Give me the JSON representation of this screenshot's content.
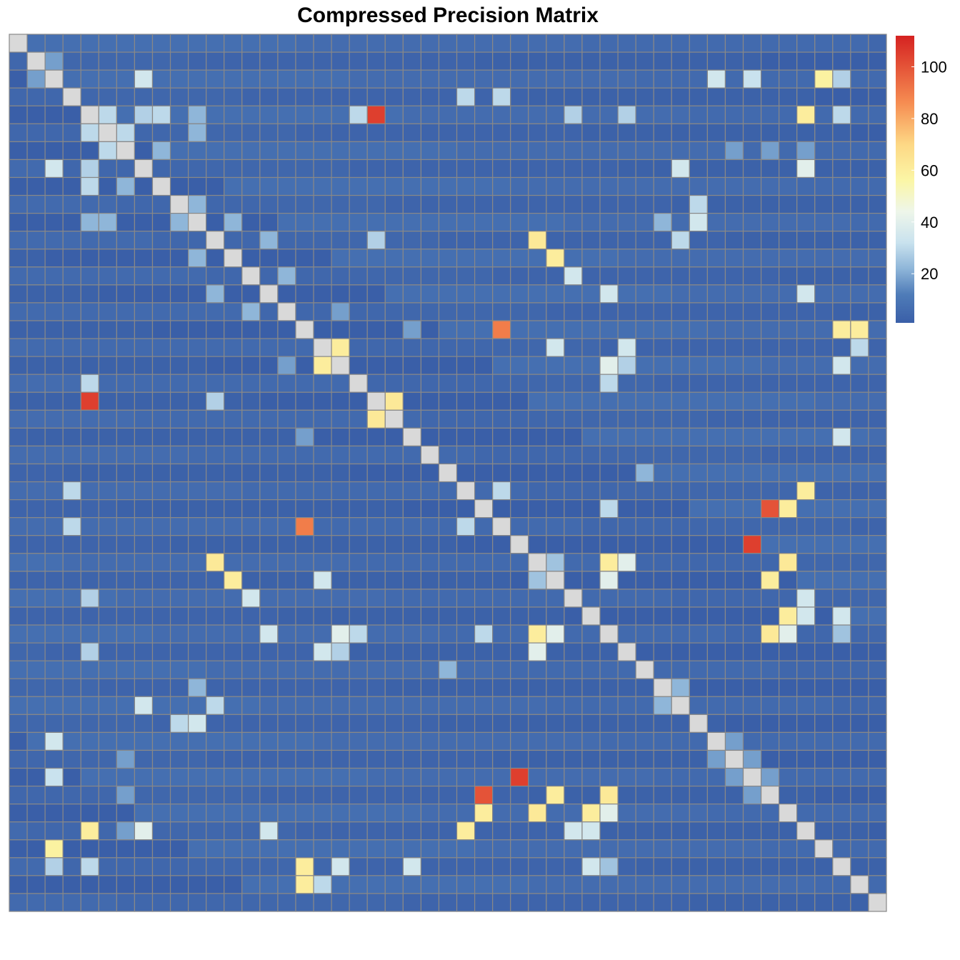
{
  "chart_data": {
    "type": "heatmap",
    "title": "Compressed Precision Matrix",
    "n": 49,
    "diagonal_color": "#d9d9d9",
    "grid_color": "#888888",
    "colorbar": {
      "min": 1,
      "max": 112,
      "ticks": [
        20,
        40,
        60,
        80,
        100
      ],
      "stops": [
        {
          "v": 1,
          "c": "#3a5fa8"
        },
        {
          "v": 12,
          "c": "#4f7cb8"
        },
        {
          "v": 22,
          "c": "#8fb6d9"
        },
        {
          "v": 32,
          "c": "#c9e2ee"
        },
        {
          "v": 44,
          "c": "#eef6ea"
        },
        {
          "v": 56,
          "c": "#fbf6a6"
        },
        {
          "v": 70,
          "c": "#fdd885"
        },
        {
          "v": 86,
          "c": "#f68d52"
        },
        {
          "v": 112,
          "c": "#d52221"
        }
      ]
    },
    "background_value": 3,
    "cells": [
      [
        1,
        2,
        18
      ],
      [
        2,
        7,
        35
      ],
      [
        2,
        45,
        58
      ],
      [
        2,
        46,
        28
      ],
      [
        2,
        41,
        32
      ],
      [
        3,
        25,
        30
      ],
      [
        3,
        27,
        30
      ],
      [
        4,
        20,
        105
      ],
      [
        4,
        8,
        30
      ],
      [
        4,
        19,
        30
      ],
      [
        4,
        31,
        28
      ],
      [
        4,
        34,
        28
      ],
      [
        4,
        44,
        28
      ],
      [
        4,
        46,
        30
      ],
      [
        4,
        5,
        30
      ],
      [
        4,
        7,
        28
      ],
      [
        6,
        42,
        18
      ],
      [
        6,
        44,
        18
      ],
      [
        6,
        40,
        18
      ],
      [
        7,
        37,
        35
      ],
      [
        7,
        44,
        30
      ],
      [
        10,
        36,
        22
      ],
      [
        11,
        20,
        28
      ],
      [
        11,
        37,
        30
      ],
      [
        12,
        30,
        60
      ],
      [
        14,
        33,
        35
      ],
      [
        14,
        44,
        35
      ],
      [
        16,
        27,
        90
      ],
      [
        16,
        47,
        60
      ],
      [
        16,
        22,
        18
      ],
      [
        17,
        18,
        60
      ],
      [
        17,
        30,
        35
      ],
      [
        17,
        34,
        35
      ],
      [
        17,
        47,
        30
      ],
      [
        18,
        34,
        28
      ],
      [
        20,
        21,
        62
      ],
      [
        4,
        10,
        22
      ],
      [
        5,
        10,
        22
      ],
      [
        9,
        10,
        22
      ],
      [
        25,
        27,
        30
      ],
      [
        25,
        44,
        60
      ],
      [
        26,
        42,
        100
      ],
      [
        29,
        30,
        25
      ],
      [
        29,
        33,
        60
      ],
      [
        29,
        34,
        40
      ],
      [
        29,
        43,
        62
      ],
      [
        29,
        11,
        62
      ],
      [
        31,
        44,
        35
      ],
      [
        31,
        13,
        35
      ],
      [
        32,
        43,
        60
      ],
      [
        32,
        44,
        35
      ],
      [
        33,
        18,
        40
      ],
      [
        33,
        19,
        30
      ],
      [
        33,
        26,
        30
      ],
      [
        33,
        30,
        40
      ],
      [
        41,
        28,
        105
      ],
      [
        42,
        30,
        60
      ],
      [
        42,
        33,
        62
      ],
      [
        43,
        26,
        60
      ],
      [
        43,
        33,
        40
      ],
      [
        44,
        4,
        60
      ],
      [
        44,
        7,
        40
      ],
      [
        46,
        16,
        60
      ],
      [
        46,
        18,
        35
      ],
      [
        46,
        22,
        35
      ],
      [
        46,
        32,
        35
      ],
      [
        46,
        33,
        25
      ],
      [
        38,
        9,
        30
      ],
      [
        38,
        10,
        35
      ],
      [
        39,
        2,
        35
      ],
      [
        5,
        6,
        30
      ],
      [
        6,
        8,
        22
      ],
      [
        10,
        12,
        22
      ],
      [
        13,
        15,
        22
      ],
      [
        11,
        14,
        22
      ],
      [
        15,
        18,
        18
      ],
      [
        35,
        24,
        22
      ],
      [
        36,
        37,
        22
      ],
      [
        39,
        40,
        18
      ],
      [
        40,
        41,
        18
      ],
      [
        41,
        42,
        18
      ]
    ]
  }
}
